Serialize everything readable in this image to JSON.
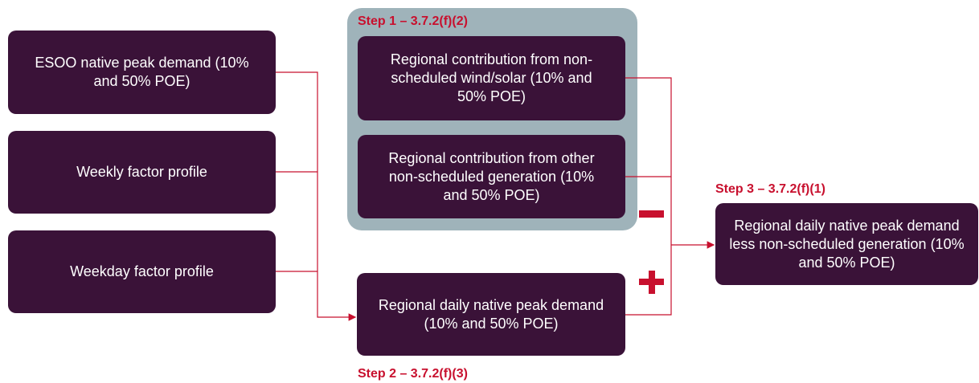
{
  "steps": [
    "Step 1 – 3.7.2(f)(2)",
    "Step 2 – 3.7.2(f)(3)",
    "Step 3 – 3.7.2(f)(1)"
  ],
  "nodes": [
    {
      "label": "ESOO native peak demand (10% and 50% POE)"
    },
    {
      "label": "Weekly factor profile"
    },
    {
      "label": "Weekday factor profile"
    },
    {
      "label": "Regional contribution from non-scheduled wind/solar (10% and 50% POE)"
    },
    {
      "label": "Regional contribution from other non-scheduled generation (10% and 50% POE)"
    },
    {
      "label": "Regional daily native peak demand (10% and 50% POE)"
    },
    {
      "label": "Regional daily native peak demand less non-scheduled generation (10% and 50% POE)"
    }
  ]
}
